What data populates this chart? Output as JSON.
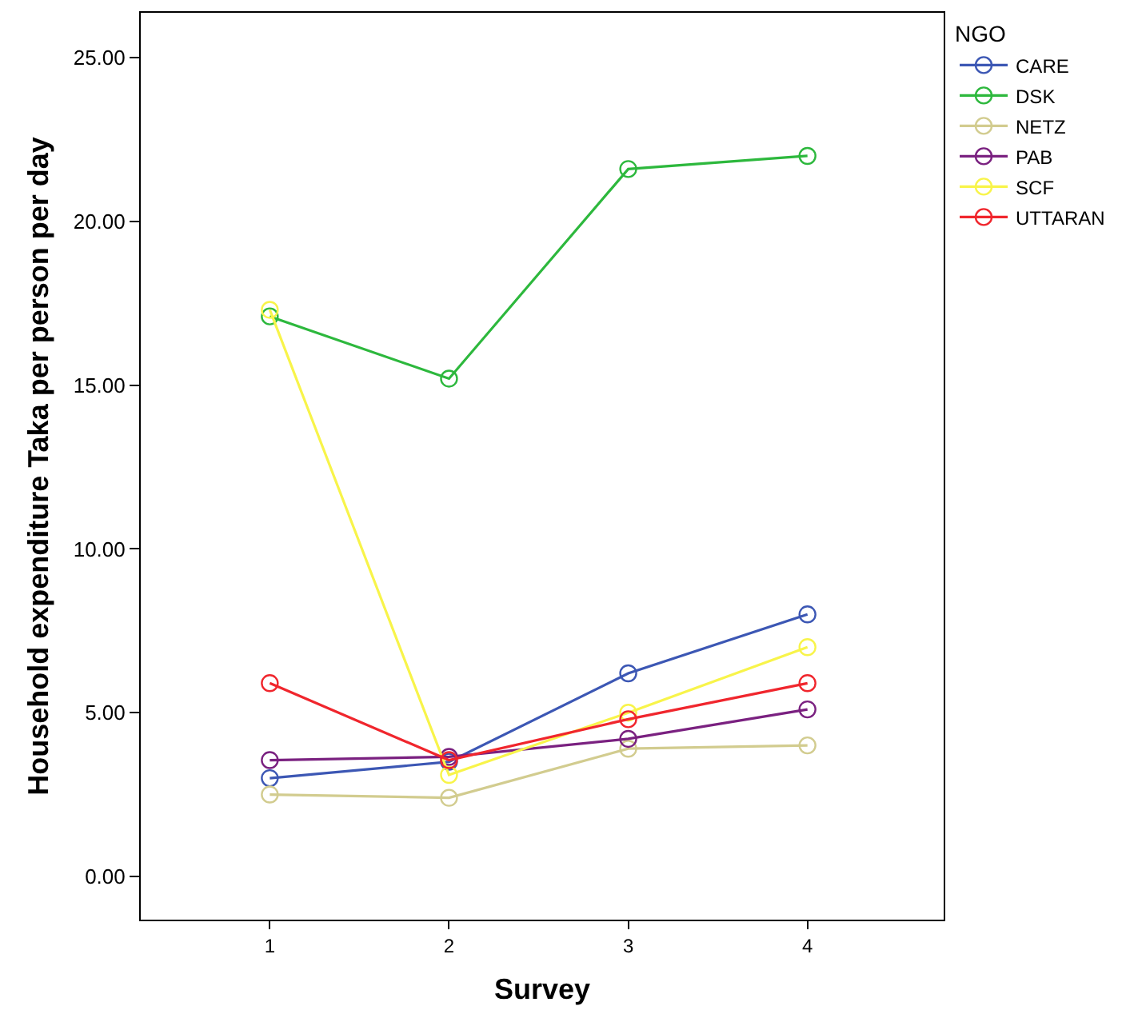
{
  "chart_data": {
    "type": "line",
    "xlabel": "Survey",
    "ylabel": "Household expenditure Taka per person per day",
    "legend_title": "NGO",
    "legend": "top right",
    "marker": "circle",
    "line_style": "solid",
    "grid": false,
    "x": [
      1,
      2,
      3,
      4
    ],
    "xlim": [
      0.28,
      4.76
    ],
    "xticks": [
      1,
      2,
      3,
      4
    ],
    "ylim": [
      -1.32,
      26.37
    ],
    "yticks": [
      {
        "value": 0,
        "label": "0.00"
      },
      {
        "value": 5,
        "label": "5.00"
      },
      {
        "value": 10,
        "label": "10.00"
      },
      {
        "value": 15,
        "label": "15.00"
      },
      {
        "value": 20,
        "label": "20.00"
      },
      {
        "value": 25,
        "label": "25.00"
      }
    ],
    "series": [
      {
        "name": "CARE",
        "color": "#3c57b4",
        "values": [
          3.0,
          3.5,
          6.2,
          8.0
        ]
      },
      {
        "name": "DSK",
        "color": "#2db83d",
        "values": [
          17.1,
          15.2,
          21.6,
          22.0
        ]
      },
      {
        "name": "NETZ",
        "color": "#d2cc8f",
        "values": [
          2.5,
          2.4,
          3.9,
          4.0
        ]
      },
      {
        "name": "PAB",
        "color": "#7a2180",
        "values": [
          3.55,
          3.65,
          4.2,
          5.1
        ]
      },
      {
        "name": "SCF",
        "color": "#f8f44a",
        "values": [
          17.3,
          3.1,
          5.0,
          7.0
        ]
      },
      {
        "name": "UTTARAN",
        "color": "#f0262d",
        "values": [
          5.9,
          3.55,
          4.8,
          5.9
        ]
      }
    ]
  }
}
